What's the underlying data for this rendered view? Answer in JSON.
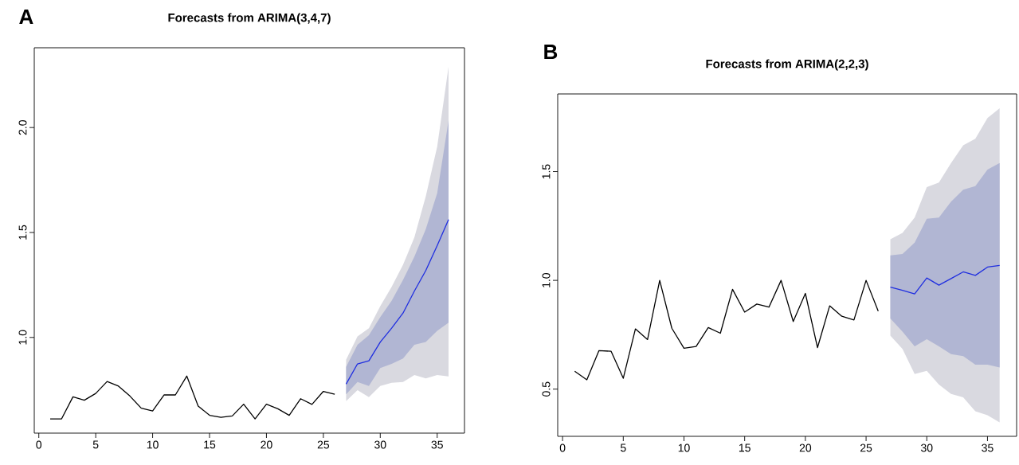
{
  "chart_data": [
    {
      "type": "line",
      "title": "Forecasts from ARIMA(3,4,7)",
      "annotations": [
        "A"
      ],
      "xlim": [
        -0.4,
        37.4
      ],
      "ylim": [
        0.544,
        2.38
      ],
      "xticks": [
        0,
        5,
        10,
        15,
        20,
        25,
        30,
        35
      ],
      "yticks": [
        {
          "value": 1,
          "label": "1.0"
        },
        {
          "value": 1.5,
          "label": "1.5"
        },
        {
          "value": 2,
          "label": "2.0"
        }
      ],
      "series": [
        {
          "type": "area",
          "color": "#d9d9e0",
          "x": [
            27,
            28,
            29,
            30,
            31,
            32,
            33,
            34,
            35,
            36
          ],
          "values": [
            null,
            null,
            null,
            null,
            null,
            null,
            null,
            null,
            null,
            null
          ],
          "upper": [
            0.894,
            1.005,
            1.044,
            1.149,
            1.241,
            1.346,
            1.477,
            1.673,
            1.909,
            2.29
          ],
          "lower": [
            0.697,
            0.749,
            0.716,
            0.769,
            0.784,
            0.788,
            0.821,
            0.805,
            0.821,
            0.814
          ]
        },
        {
          "type": "area",
          "color": "#b1b6d3",
          "x": [
            27,
            28,
            29,
            30,
            31,
            32,
            33,
            34,
            35,
            36
          ],
          "values": [
            null,
            null,
            null,
            null,
            null,
            null,
            null,
            null,
            null,
            null
          ],
          "upper": [
            0.86,
            0.965,
            1.011,
            1.097,
            1.175,
            1.274,
            1.385,
            1.516,
            1.687,
            2.034
          ],
          "lower": [
            0.729,
            0.788,
            0.769,
            0.854,
            0.874,
            0.9,
            0.965,
            0.978,
            1.031,
            1.07
          ]
        },
        {
          "color": "#000000",
          "x": [
            1,
            2,
            3,
            4,
            5,
            6,
            7,
            8,
            9,
            10,
            11,
            12,
            13,
            14,
            15,
            16,
            17,
            18,
            19,
            20,
            21,
            22,
            23,
            24,
            25,
            26
          ],
          "values": [
            0.612,
            0.612,
            0.717,
            0.701,
            0.733,
            0.79,
            0.768,
            0.721,
            0.663,
            0.65,
            0.726,
            0.726,
            0.816,
            0.673,
            0.629,
            0.619,
            0.626,
            0.682,
            0.612,
            0.682,
            0.66,
            0.629,
            0.708,
            0.681,
            0.743,
            0.729
          ]
        },
        {
          "color": "#1f2ee0",
          "x": [
            27,
            28,
            29,
            30,
            31,
            32,
            33,
            34,
            35,
            36
          ],
          "values": [
            0.778,
            0.874,
            0.889,
            0.978,
            1.044,
            1.116,
            1.221,
            1.319,
            1.437,
            1.562
          ]
        }
      ]
    },
    {
      "type": "line",
      "title": "Forecasts from ARIMA(2,2,3)",
      "annotations": [
        "B"
      ],
      "xlim": [
        -0.4,
        37.4
      ],
      "ylim": [
        0.283,
        1.857
      ],
      "xticks": [
        0,
        5,
        10,
        15,
        20,
        25,
        30,
        35
      ],
      "yticks": [
        {
          "value": 0.5,
          "label": "0.5"
        },
        {
          "value": 1,
          "label": "1.0"
        },
        {
          "value": 1.5,
          "label": "1.5"
        }
      ],
      "series": [
        {
          "type": "area",
          "color": "#d9d9e0",
          "x": [
            27,
            28,
            29,
            30,
            31,
            32,
            33,
            34,
            35,
            36
          ],
          "values": [
            null,
            null,
            null,
            null,
            null,
            null,
            null,
            null,
            null,
            null
          ],
          "upper": [
            1.189,
            1.218,
            1.289,
            1.429,
            1.45,
            1.539,
            1.621,
            1.651,
            1.746,
            1.791
          ],
          "lower": [
            0.746,
            0.685,
            0.569,
            0.584,
            0.521,
            0.478,
            0.462,
            0.398,
            0.38,
            0.347
          ]
        },
        {
          "type": "area",
          "color": "#b1b6d3",
          "x": [
            27,
            28,
            29,
            30,
            31,
            32,
            33,
            34,
            35,
            36
          ],
          "values": [
            null,
            null,
            null,
            null,
            null,
            null,
            null,
            null,
            null,
            null
          ],
          "upper": [
            1.115,
            1.121,
            1.173,
            1.283,
            1.289,
            1.362,
            1.417,
            1.433,
            1.509,
            1.539
          ],
          "lower": [
            0.825,
            0.764,
            0.697,
            0.73,
            0.697,
            0.661,
            0.652,
            0.612,
            0.612,
            0.6
          ]
        },
        {
          "color": "#000000",
          "x": [
            1,
            2,
            3,
            4,
            5,
            6,
            7,
            8,
            9,
            10,
            11,
            12,
            13,
            14,
            15,
            16,
            17,
            18,
            19,
            20,
            21,
            22,
            23,
            24,
            25,
            26
          ],
          "values": [
            0.582,
            0.543,
            0.677,
            0.674,
            0.55,
            0.777,
            0.728,
            1.0,
            0.78,
            0.688,
            0.696,
            0.783,
            0.757,
            0.959,
            0.854,
            0.891,
            0.877,
            1.0,
            0.811,
            0.94,
            0.691,
            0.883,
            0.835,
            0.818,
            1.0,
            0.859
          ]
        },
        {
          "color": "#1f2ee0",
          "x": [
            27,
            28,
            29,
            30,
            31,
            32,
            33,
            34,
            35,
            36
          ],
          "values": [
            0.969,
            0.954,
            0.938,
            1.011,
            0.978,
            1.008,
            1.039,
            1.023,
            1.061,
            1.069
          ]
        }
      ]
    }
  ]
}
